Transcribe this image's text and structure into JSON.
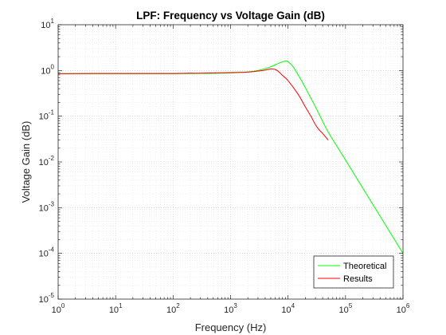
{
  "chart_data": {
    "type": "line",
    "title": "LPF: Frequency vs Voltage Gain (dB)",
    "xlabel": "Frequency (Hz)",
    "ylabel": "Voltage Gain (dB)",
    "x_scale": "log",
    "y_scale": "log",
    "xlim": [
      1,
      1000000
    ],
    "ylim": [
      1e-05,
      10
    ],
    "grid": "on (major and minor, dotted)",
    "legend_position": "bottom-right",
    "x_ticks": [
      {
        "base": "10",
        "exp": "0"
      },
      {
        "base": "10",
        "exp": "1"
      },
      {
        "base": "10",
        "exp": "2"
      },
      {
        "base": "10",
        "exp": "3"
      },
      {
        "base": "10",
        "exp": "4"
      },
      {
        "base": "10",
        "exp": "5"
      },
      {
        "base": "10",
        "exp": "6"
      }
    ],
    "y_ticks": [
      {
        "base": "10",
        "exp": "-5"
      },
      {
        "base": "10",
        "exp": "-4"
      },
      {
        "base": "10",
        "exp": "-3"
      },
      {
        "base": "10",
        "exp": "-2"
      },
      {
        "base": "10",
        "exp": "-1"
      },
      {
        "base": "10",
        "exp": "0"
      },
      {
        "base": "10",
        "exp": "1"
      }
    ],
    "series": [
      {
        "name": "Theoretical",
        "color": "#00ff00",
        "points": [
          [
            1,
            0.85
          ],
          [
            10,
            0.85
          ],
          [
            100,
            0.85
          ],
          [
            300,
            0.86
          ],
          [
            1000,
            0.88
          ],
          [
            2000,
            0.93
          ],
          [
            3000,
            1.0
          ],
          [
            5000,
            1.2
          ],
          [
            7000,
            1.45
          ],
          [
            9000,
            1.6
          ],
          [
            10000,
            1.55
          ],
          [
            12000,
            1.25
          ],
          [
            15000,
            0.8
          ],
          [
            20000,
            0.42
          ],
          [
            30000,
            0.16
          ],
          [
            50000,
            0.045
          ],
          [
            100000,
            0.011
          ],
          [
            1000000,
            0.0001
          ]
        ]
      },
      {
        "name": "Results",
        "color": "#ff0000",
        "points": [
          [
            1,
            0.85
          ],
          [
            10,
            0.86
          ],
          [
            100,
            0.86
          ],
          [
            200,
            0.87
          ],
          [
            300,
            0.87
          ],
          [
            1000,
            0.9
          ],
          [
            2000,
            0.92
          ],
          [
            3000,
            0.97
          ],
          [
            4000,
            1.02
          ],
          [
            5000,
            1.08
          ],
          [
            6000,
            1.05
          ],
          [
            7000,
            0.92
          ],
          [
            8000,
            0.78
          ],
          [
            10000,
            0.6
          ],
          [
            15000,
            0.3
          ],
          [
            20000,
            0.16
          ],
          [
            25000,
            0.1
          ],
          [
            30000,
            0.065
          ],
          [
            35000,
            0.05
          ],
          [
            40000,
            0.042
          ],
          [
            50000,
            0.03
          ]
        ]
      }
    ]
  }
}
